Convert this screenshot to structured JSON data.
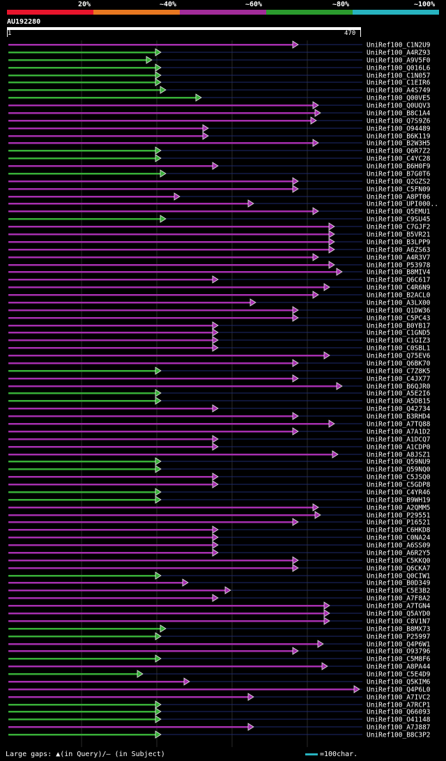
{
  "legend": {
    "labels": [
      "20%",
      "~40%",
      "~60%",
      "~80%",
      "~100%"
    ],
    "colors": [
      "#e8152c",
      "#e87821",
      "#a22c9a",
      "#2b9b2e",
      "#27b3c0"
    ]
  },
  "query": {
    "id": "AU192280",
    "start": "1",
    "end": "470"
  },
  "colors": {
    "hit_purple": "#a72fb0",
    "hit_green": "#38b038",
    "tail_navy": "#1e2a6e",
    "gap_marker": "#f4f4a0"
  },
  "hits": [
    {
      "label": "UniRef100_C1N2U9",
      "cls": "p",
      "end": 426
    },
    {
      "label": "UniRef100_A4RZ93",
      "cls": "g",
      "end": 229
    },
    {
      "label": "UniRef100_A9V5F0",
      "cls": "g",
      "end": 216
    },
    {
      "label": "UniRef100_Q016L6",
      "cls": "g",
      "end": 229
    },
    {
      "label": "UniRef100_C1N057",
      "cls": "g",
      "end": 229
    },
    {
      "label": "UniRef100_C1EIR6",
      "cls": "g",
      "end": 229
    },
    {
      "label": "UniRef100_A4S749",
      "cls": "g",
      "end": 236
    },
    {
      "label": "UniRef100_Q00VE5",
      "cls": "g",
      "end": 287
    },
    {
      "label": "UniRef100_Q0UQV3",
      "cls": "p",
      "end": 455
    },
    {
      "label": "UniRef100_B8C1A4",
      "cls": "p",
      "end": 458
    },
    {
      "label": "UniRef100_Q7S9Z6",
      "cls": "p",
      "end": 452
    },
    {
      "label": "UniRef100_O94489",
      "cls": "p",
      "end": 297
    },
    {
      "label": "UniRef100_B6K119",
      "cls": "p",
      "end": 297
    },
    {
      "label": "UniRef100_B2W3H5",
      "cls": "p",
      "end": 455
    },
    {
      "label": "UniRef100_Q6R7Z2",
      "cls": "g",
      "end": 229
    },
    {
      "label": "UniRef100_C4YC28",
      "cls": "g",
      "end": 229
    },
    {
      "label": "UniRef100_B6H0F9",
      "cls": "p",
      "end": 311
    },
    {
      "label": "UniRef100_B7G0T6",
      "cls": "g",
      "end": 236
    },
    {
      "label": "UniRef100_Q2GZS2",
      "cls": "p",
      "end": 426
    },
    {
      "label": "UniRef100_C5FN09",
      "cls": "p",
      "end": 426
    },
    {
      "label": "UniRef100_A8PT06",
      "cls": "p",
      "end": 256
    },
    {
      "label": "UniRef100_UPI000..",
      "cls": "p",
      "end": 362
    },
    {
      "label": "UniRef100_Q5EMU1",
      "cls": "p",
      "end": 455
    },
    {
      "label": "UniRef100_C9SU45",
      "cls": "g",
      "end": 236
    },
    {
      "label": "UniRef100_C7GJF2",
      "cls": "p",
      "end": 478
    },
    {
      "label": "UniRef100_B5VR21",
      "cls": "p",
      "end": 478
    },
    {
      "label": "UniRef100_B3LPP9",
      "cls": "p",
      "end": 478
    },
    {
      "label": "UniRef100_A6ZS63",
      "cls": "p",
      "end": 478
    },
    {
      "label": "UniRef100_A4R3V7",
      "cls": "p",
      "end": 455
    },
    {
      "label": "UniRef100_P53978",
      "cls": "p",
      "end": 478
    },
    {
      "label": "UniRef100_B8MIV4",
      "cls": "p",
      "end": 489
    },
    {
      "label": "UniRef100_Q6C617",
      "cls": "p",
      "end": 311
    },
    {
      "label": "UniRef100_C4R6N9",
      "cls": "p",
      "end": 471
    },
    {
      "label": "UniRef100_B2ACL0",
      "cls": "p",
      "end": 455
    },
    {
      "label": "UniRef100_A3LX00",
      "cls": "p",
      "end": 365
    },
    {
      "label": "UniRef100_Q1DW36",
      "cls": "p",
      "end": 426
    },
    {
      "label": "UniRef100_C5PC43",
      "cls": "p",
      "end": 426
    },
    {
      "label": "UniRef100_B0YB17",
      "cls": "p",
      "end": 311
    },
    {
      "label": "UniRef100_C1GND5",
      "cls": "p",
      "end": 311
    },
    {
      "label": "UniRef100_C1GIZ3",
      "cls": "p",
      "end": 311
    },
    {
      "label": "UniRef100_C0SBL1",
      "cls": "p",
      "end": 311
    },
    {
      "label": "UniRef100_Q75EV6",
      "cls": "p",
      "end": 471
    },
    {
      "label": "UniRef100_Q6BK70",
      "cls": "p",
      "end": 426
    },
    {
      "label": "UniRef100_C7Z8K5",
      "cls": "g",
      "end": 229
    },
    {
      "label": "UniRef100_C4JX77",
      "cls": "p",
      "end": 426
    },
    {
      "label": "UniRef100_B6QJR0",
      "cls": "p",
      "end": 489
    },
    {
      "label": "UniRef100_A5E2I6",
      "cls": "g",
      "end": 229
    },
    {
      "label": "UniRef100_A5DB15",
      "cls": "g",
      "end": 229
    },
    {
      "label": "UniRef100_Q42734",
      "cls": "p",
      "end": 311
    },
    {
      "label": "UniRef100_B3RHD4",
      "cls": "p",
      "end": 426
    },
    {
      "label": "UniRef100_A7TQ88",
      "cls": "p",
      "end": 478
    },
    {
      "label": "UniRef100_A7A1D2",
      "cls": "p",
      "end": 426
    },
    {
      "label": "UniRef100_A1DCQ7",
      "cls": "p",
      "end": 311
    },
    {
      "label": "UniRef100_A1CDP0",
      "cls": "p",
      "end": 311
    },
    {
      "label": "UniRef100_A8JSZ1",
      "cls": "p",
      "end": 483
    },
    {
      "label": "UniRef100_Q59NU9",
      "cls": "g",
      "end": 229
    },
    {
      "label": "UniRef100_Q59NQ0",
      "cls": "g",
      "end": 229
    },
    {
      "label": "UniRef100_C5JSQ0",
      "cls": "p",
      "end": 311
    },
    {
      "label": "UniRef100_C5GDP8",
      "cls": "p",
      "end": 311
    },
    {
      "label": "UniRef100_C4YR46",
      "cls": "g",
      "end": 229
    },
    {
      "label": "UniRef100_B9WH19",
      "cls": "g",
      "end": 229
    },
    {
      "label": "UniRef100_A2QMM5",
      "cls": "p",
      "end": 455
    },
    {
      "label": "UniRef100_P29551",
      "cls": "p",
      "end": 458
    },
    {
      "label": "UniRef100_P16521",
      "cls": "p",
      "end": 426
    },
    {
      "label": "UniRef100_C6HKD8",
      "cls": "p",
      "end": 311
    },
    {
      "label": "UniRef100_C0NA24",
      "cls": "p",
      "end": 311
    },
    {
      "label": "UniRef100_A6SS09",
      "cls": "p",
      "end": 311
    },
    {
      "label": "UniRef100_A6R2Y5",
      "cls": "p",
      "end": 311
    },
    {
      "label": "UniRef100_C5KKQ0",
      "cls": "p",
      "end": 426
    },
    {
      "label": "UniRef100_Q6CKA7",
      "cls": "p",
      "end": 426
    },
    {
      "label": "UniRef100_Q0CIW1",
      "cls": "g",
      "end": 229
    },
    {
      "label": "UniRef100_B0D349",
      "cls": "p",
      "end": 268
    },
    {
      "label": "UniRef100_C5E3B2",
      "cls": "p",
      "end": 329
    },
    {
      "label": "UniRef100_A7F8A2",
      "cls": "p",
      "end": 311
    },
    {
      "label": "UniRef100_A7TGN4",
      "cls": "p",
      "end": 471
    },
    {
      "label": "UniRef100_Q5AYD0",
      "cls": "p",
      "end": 471
    },
    {
      "label": "UniRef100_C8V1N7",
      "cls": "p",
      "end": 471
    },
    {
      "label": "UniRef100_B8MX73",
      "cls": "g",
      "end": 236
    },
    {
      "label": "UniRef100_P25997",
      "cls": "g",
      "end": 229
    },
    {
      "label": "UniRef100_Q4P6W1",
      "cls": "p",
      "end": 462
    },
    {
      "label": "UniRef100_O93796",
      "cls": "p",
      "end": 426
    },
    {
      "label": "UniRef100_C5M8F6",
      "cls": "g",
      "end": 229
    },
    {
      "label": "UniRef100_A8PA44",
      "cls": "p",
      "end": 468
    },
    {
      "label": "UniRef100_C5E4D9",
      "cls": "g",
      "end": 203
    },
    {
      "label": "UniRef100_Q5KIM6",
      "cls": "p",
      "end": 270
    },
    {
      "label": "UniRef100_Q4P6L0",
      "cls": "p",
      "end": 514
    },
    {
      "label": "UniRef100_A7IVC2",
      "cls": "p",
      "end": 362
    },
    {
      "label": "UniRef100_A7RCP1",
      "cls": "g",
      "end": 229
    },
    {
      "label": "UniRef100_Q66093",
      "cls": "g",
      "end": 229
    },
    {
      "label": "UniRef100_O41148",
      "cls": "g",
      "end": 229
    },
    {
      "label": "UniRef100_A7J887",
      "cls": "p",
      "end": 362
    },
    {
      "label": "UniRef100_B8C3P2",
      "cls": "g",
      "end": 229
    }
  ],
  "footer": {
    "text": "Large gaps: ▲(in Query)/– (in Subject)",
    "scale_text": "=100char."
  }
}
